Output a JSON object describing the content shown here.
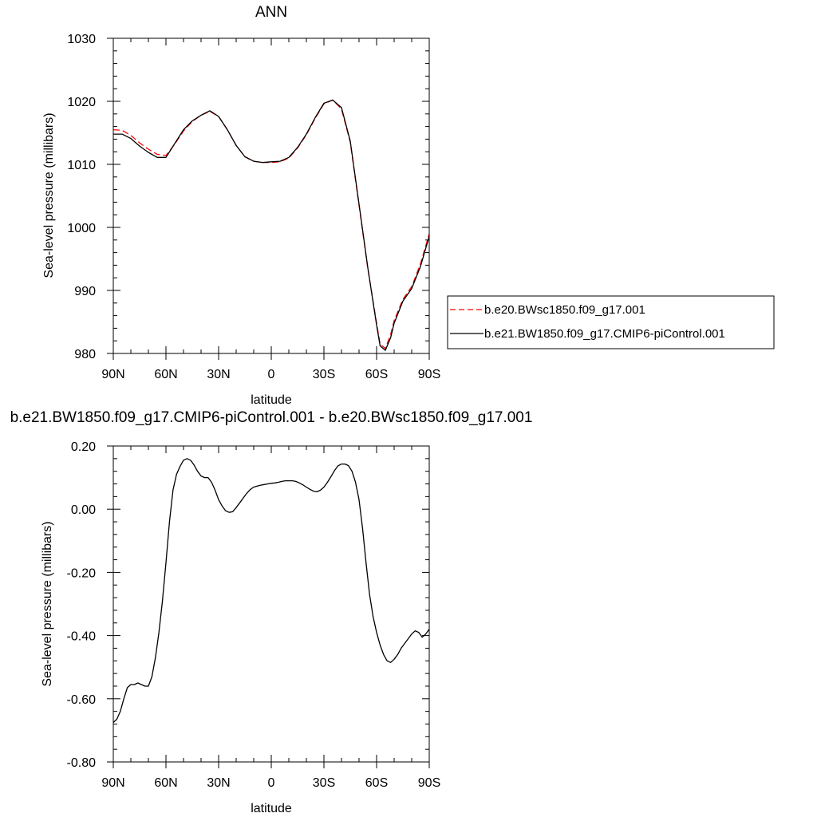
{
  "chart_data": [
    {
      "type": "line",
      "title": "ANN",
      "xlabel": "latitude",
      "ylabel": "Sea-level pressure (millibars)",
      "xlim": [
        90,
        -90
      ],
      "ylim": [
        980,
        1030
      ],
      "x_ticks": [
        90,
        60,
        30,
        0,
        -30,
        -60,
        -90
      ],
      "x_tick_labels": [
        "90N",
        "60N",
        "30N",
        "0",
        "30S",
        "60S",
        "90S"
      ],
      "y_ticks": [
        980,
        990,
        1000,
        1010,
        1020,
        1030
      ],
      "y_tick_labels": [
        "980",
        "990",
        "1000",
        "1010",
        "1020",
        "1030"
      ],
      "legend_position": "right",
      "series": [
        {
          "name": "b.e20.BWsc1850.f09_g17.001",
          "color": "#ff0000",
          "style": "dashed",
          "x": [
            90,
            85,
            80,
            75,
            70,
            65,
            60,
            55,
            50,
            45,
            40,
            35,
            30,
            25,
            20,
            15,
            10,
            5,
            0,
            -5,
            -10,
            -15,
            -20,
            -25,
            -30,
            -35,
            -40,
            -45,
            -50,
            -55,
            -60,
            -62,
            -65,
            -68,
            -70,
            -75,
            -80,
            -85,
            -90
          ],
          "values": [
            1015.5,
            1015.4,
            1014.6,
            1013.4,
            1012.4,
            1011.6,
            1011.4,
            1013.2,
            1015.3,
            1016.8,
            1017.8,
            1018.4,
            1017.6,
            1015.5,
            1013.0,
            1011.2,
            1010.5,
            1010.3,
            1010.3,
            1010.4,
            1011.0,
            1012.6,
            1014.7,
            1017.3,
            1019.6,
            1020.2,
            1018.8,
            1013.5,
            1003.5,
            993.5,
            984.8,
            981.5,
            980.8,
            983.0,
            985.2,
            988.6,
            990.6,
            994.2,
            999.0
          ]
        },
        {
          "name": "b.e21.BW1850.f09_g17.CMIP6-piControl.001",
          "color": "#000000",
          "style": "solid",
          "x": [
            90,
            85,
            80,
            75,
            70,
            65,
            60,
            55,
            50,
            45,
            40,
            35,
            30,
            25,
            20,
            15,
            10,
            5,
            0,
            -5,
            -10,
            -15,
            -20,
            -25,
            -30,
            -35,
            -40,
            -45,
            -50,
            -55,
            -60,
            -62,
            -65,
            -68,
            -70,
            -75,
            -80,
            -85,
            -90
          ],
          "values": [
            1014.8,
            1014.8,
            1014.1,
            1012.9,
            1011.9,
            1011.1,
            1011.1,
            1013.3,
            1015.5,
            1016.9,
            1017.8,
            1018.5,
            1017.6,
            1015.5,
            1013.0,
            1011.2,
            1010.5,
            1010.3,
            1010.4,
            1010.5,
            1011.1,
            1012.7,
            1014.8,
            1017.4,
            1019.7,
            1020.2,
            1019.0,
            1013.7,
            1003.7,
            993.6,
            984.5,
            981.2,
            980.5,
            982.5,
            984.8,
            988.3,
            990.3,
            993.8,
            998.6
          ]
        }
      ]
    },
    {
      "type": "line",
      "title": "b.e21.BW1850.f09_g17.CMIP6-piControl.001 - b.e20.BWsc1850.f09_g17.001",
      "xlabel": "latitude",
      "ylabel": "Sea-level pressure (millibars)",
      "xlim": [
        90,
        -90
      ],
      "ylim": [
        -0.8,
        0.2
      ],
      "x_ticks": [
        90,
        60,
        30,
        0,
        -30,
        -60,
        -90
      ],
      "x_tick_labels": [
        "90N",
        "60N",
        "30N",
        "0",
        "30S",
        "60S",
        "90S"
      ],
      "y_ticks": [
        -0.8,
        -0.6,
        -0.4,
        -0.2,
        0.0,
        0.2
      ],
      "y_tick_labels": [
        "-0.80",
        "-0.60",
        "-0.40",
        "-0.20",
        "0.00",
        "0.20"
      ],
      "series": [
        {
          "color": "#000000",
          "style": "solid",
          "x": [
            90,
            88,
            86,
            84,
            82,
            80,
            78,
            76,
            74,
            72,
            70,
            68,
            66,
            64,
            62,
            60,
            58,
            56,
            54,
            52,
            50,
            48,
            46,
            44,
            42,
            40,
            38,
            36,
            34,
            32,
            30,
            28,
            26,
            24,
            22,
            20,
            18,
            16,
            14,
            12,
            10,
            8,
            6,
            4,
            2,
            0,
            -2,
            -4,
            -6,
            -8,
            -10,
            -12,
            -14,
            -16,
            -18,
            -20,
            -22,
            -24,
            -26,
            -28,
            -30,
            -32,
            -34,
            -36,
            -38,
            -40,
            -42,
            -44,
            -46,
            -48,
            -50,
            -52,
            -54,
            -56,
            -58,
            -60,
            -62,
            -64,
            -66,
            -68,
            -70,
            -72,
            -74,
            -76,
            -78,
            -80,
            -82,
            -84,
            -86,
            -88,
            -90
          ],
          "values": [
            -0.675,
            -0.665,
            -0.64,
            -0.6,
            -0.565,
            -0.555,
            -0.555,
            -0.55,
            -0.555,
            -0.56,
            -0.56,
            -0.53,
            -0.47,
            -0.39,
            -0.29,
            -0.17,
            -0.04,
            0.06,
            0.11,
            0.135,
            0.155,
            0.16,
            0.155,
            0.14,
            0.12,
            0.105,
            0.1,
            0.1,
            0.085,
            0.06,
            0.03,
            0.01,
            -0.005,
            -0.01,
            -0.008,
            0.005,
            0.02,
            0.035,
            0.05,
            0.062,
            0.07,
            0.073,
            0.076,
            0.078,
            0.08,
            0.082,
            0.083,
            0.085,
            0.088,
            0.09,
            0.09,
            0.09,
            0.088,
            0.083,
            0.077,
            0.07,
            0.063,
            0.057,
            0.055,
            0.06,
            0.07,
            0.085,
            0.103,
            0.122,
            0.137,
            0.143,
            0.143,
            0.138,
            0.12,
            0.085,
            0.03,
            -0.06,
            -0.17,
            -0.27,
            -0.34,
            -0.39,
            -0.43,
            -0.46,
            -0.48,
            -0.485,
            -0.475,
            -0.46,
            -0.44,
            -0.425,
            -0.41,
            -0.395,
            -0.385,
            -0.39,
            -0.405,
            -0.395,
            -0.38
          ]
        }
      ]
    }
  ]
}
